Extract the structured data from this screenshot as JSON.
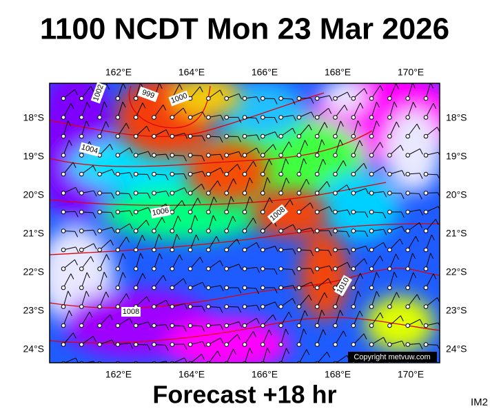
{
  "title": "1100 NCDT Mon 23 Mar 2026",
  "longitude_labels": [
    "162°E",
    "164°E",
    "166°E",
    "168°E",
    "170°E"
  ],
  "latitude_labels": [
    "18°S",
    "19°S",
    "20°S",
    "21°S",
    "22°S",
    "23°S",
    "24°S"
  ],
  "contour_labels": [
    "1002",
    "999",
    "1000",
    "1004",
    "1006",
    "1008",
    "1010",
    "1008"
  ],
  "copyright": "Copyright metvuw.com",
  "footer": "Forecast +18 hr",
  "corner_label": "IM2"
}
